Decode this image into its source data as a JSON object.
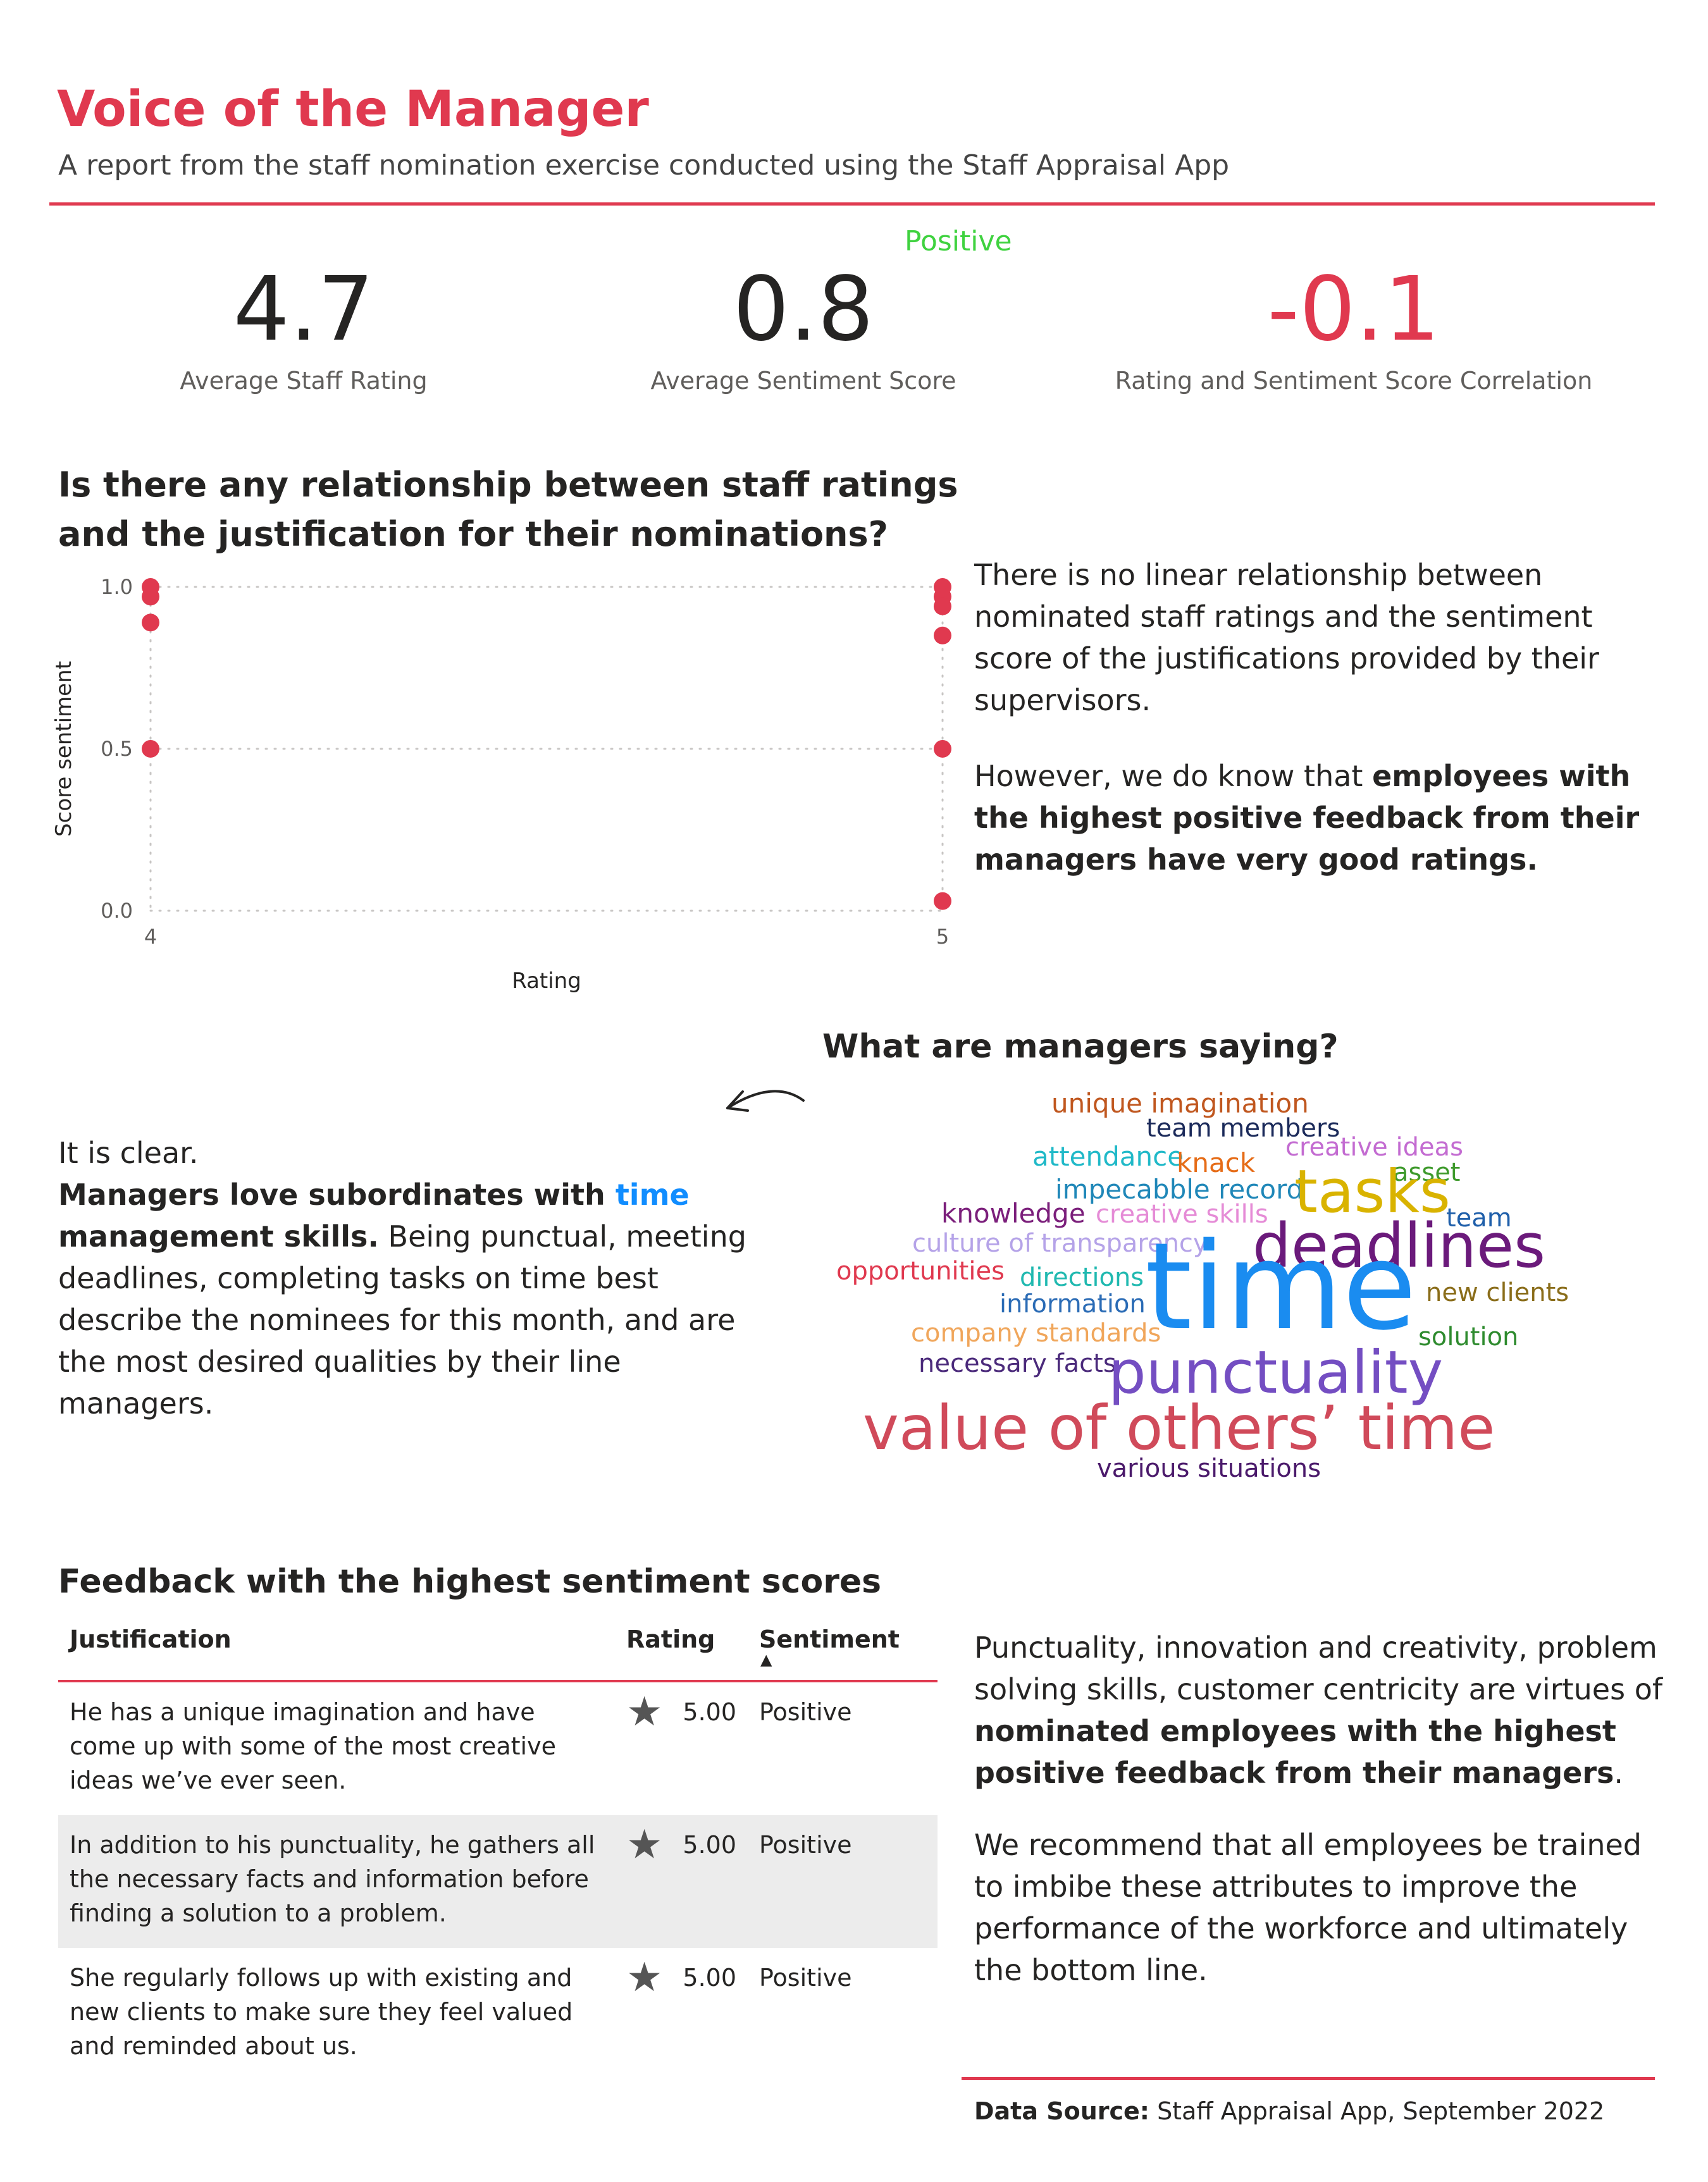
{
  "header": {
    "title": "Voice of the Manager",
    "subtitle": "A report from the staff nomination exercise conducted using the Staff Appraisal App"
  },
  "kpis": {
    "rating": {
      "value": "4.7",
      "label": "Average Staff Rating"
    },
    "sentiment": {
      "value": "0.8",
      "label": "Average Sentiment Score",
      "tag": "Positive",
      "tag_color": "#3fd23f"
    },
    "correlation": {
      "value": "-0.1",
      "label": "Rating and Sentiment Score Correlation",
      "value_color": "#e0394f"
    }
  },
  "relationship": {
    "heading": "Is there any relationship between staff ratings and the justification for their nominations?",
    "para1": "There is no linear relationship between nominated staff ratings and the sentiment score of the justifications provided by their supervisors.",
    "para2_prefix": "However, we do know that ",
    "para2_bold": "employees with the highest positive feedback from their managers have very good ratings."
  },
  "chart_data": {
    "type": "scatter",
    "xlabel": "Rating",
    "ylabel": "Score sentiment",
    "xlim": [
      4,
      5
    ],
    "ylim": [
      0,
      1
    ],
    "x_ticks": [
      "4",
      "5"
    ],
    "y_ticks": [
      "0.0",
      "0.5",
      "1.0"
    ],
    "grid": true,
    "marker_color": "#e0394f",
    "series": [
      {
        "x": [
          4,
          4,
          4,
          4,
          5,
          5,
          5,
          5,
          5,
          5
        ],
        "y": [
          1.0,
          0.97,
          0.89,
          0.5,
          1.0,
          0.97,
          0.94,
          0.85,
          0.5,
          0.03
        ]
      }
    ]
  },
  "words_section": {
    "heading": "What are managers saying?",
    "clear": "It is clear.",
    "bold_prefix": "Managers love subordinates with ",
    "accent_word": "time",
    "bold_suffix": "management skills.",
    "rest": " Being punctual, meeting deadlines, completing tasks on time best describe the nominees for this month, and are the most desired qualities by their line managers."
  },
  "word_cloud": [
    {
      "text": "unique imagination",
      "color": "#c0571f"
    },
    {
      "text": "team members",
      "color": "#1b2a5a"
    },
    {
      "text": "creative ideas",
      "color": "#c36bd1"
    },
    {
      "text": "attendance",
      "color": "#20b9c8"
    },
    {
      "text": "knack",
      "color": "#e66c17"
    },
    {
      "text": "asset",
      "color": "#3e9a2c"
    },
    {
      "text": "impecabble record",
      "color": "#1f87b8"
    },
    {
      "text": "tasks",
      "color": "#d9b300"
    },
    {
      "text": "knowledge",
      "color": "#7b1f7b"
    },
    {
      "text": "creative skills",
      "color": "#e58bd6"
    },
    {
      "text": "team",
      "color": "#1f5faa"
    },
    {
      "text": "culture of transparency",
      "color": "#b5a3e8"
    },
    {
      "text": "deadlines",
      "color": "#6b1a7b"
    },
    {
      "text": "opportunities",
      "color": "#e0394f"
    },
    {
      "text": "directions",
      "color": "#20b9b0"
    },
    {
      "text": "time",
      "color": "#1a8cf0"
    },
    {
      "text": "new clients",
      "color": "#8a6d1a"
    },
    {
      "text": "information",
      "color": "#2a6bb5"
    },
    {
      "text": "company standards",
      "color": "#f0a65b"
    },
    {
      "text": "solution",
      "color": "#2e8b2e"
    },
    {
      "text": "necessary facts",
      "color": "#4b2a7b"
    },
    {
      "text": "punctuality",
      "color": "#744ec2"
    },
    {
      "text": "value of others’ time",
      "color": "#d04a5a"
    },
    {
      "text": "various situations",
      "color": "#4b1a6b"
    }
  ],
  "feedback": {
    "heading": "Feedback with the highest sentiment scores",
    "columns": [
      "Justification",
      "Rating",
      "Sentiment"
    ],
    "rows": [
      {
        "justification": "He has a unique imagination and have come up with some of the most creative ideas we’ve ever seen.",
        "rating": "5.00",
        "sentiment": "Positive"
      },
      {
        "justification": "In addition to his punctuality, he gathers all the necessary facts and information before finding a solution to a problem.",
        "rating": "5.00",
        "sentiment": "Positive"
      },
      {
        "justification": "She regularly follows up with existing and new clients to make sure they feel valued and reminded about us.",
        "rating": "5.00",
        "sentiment": "Positive"
      }
    ],
    "para1_prefix": "Punctuality, innovation and creativity, problem solving skills, customer centricity are virtues of ",
    "para1_bold": "nominated employees with the highest positive feedback from their managers",
    "para1_suffix": ".",
    "para2": "We recommend that all employees be trained to imbibe these attributes to improve the performance of the workforce and ultimately the bottom line."
  },
  "footer": {
    "source_label": "Data Source:",
    "source_text": " Staff Appraisal App, September 2022"
  }
}
